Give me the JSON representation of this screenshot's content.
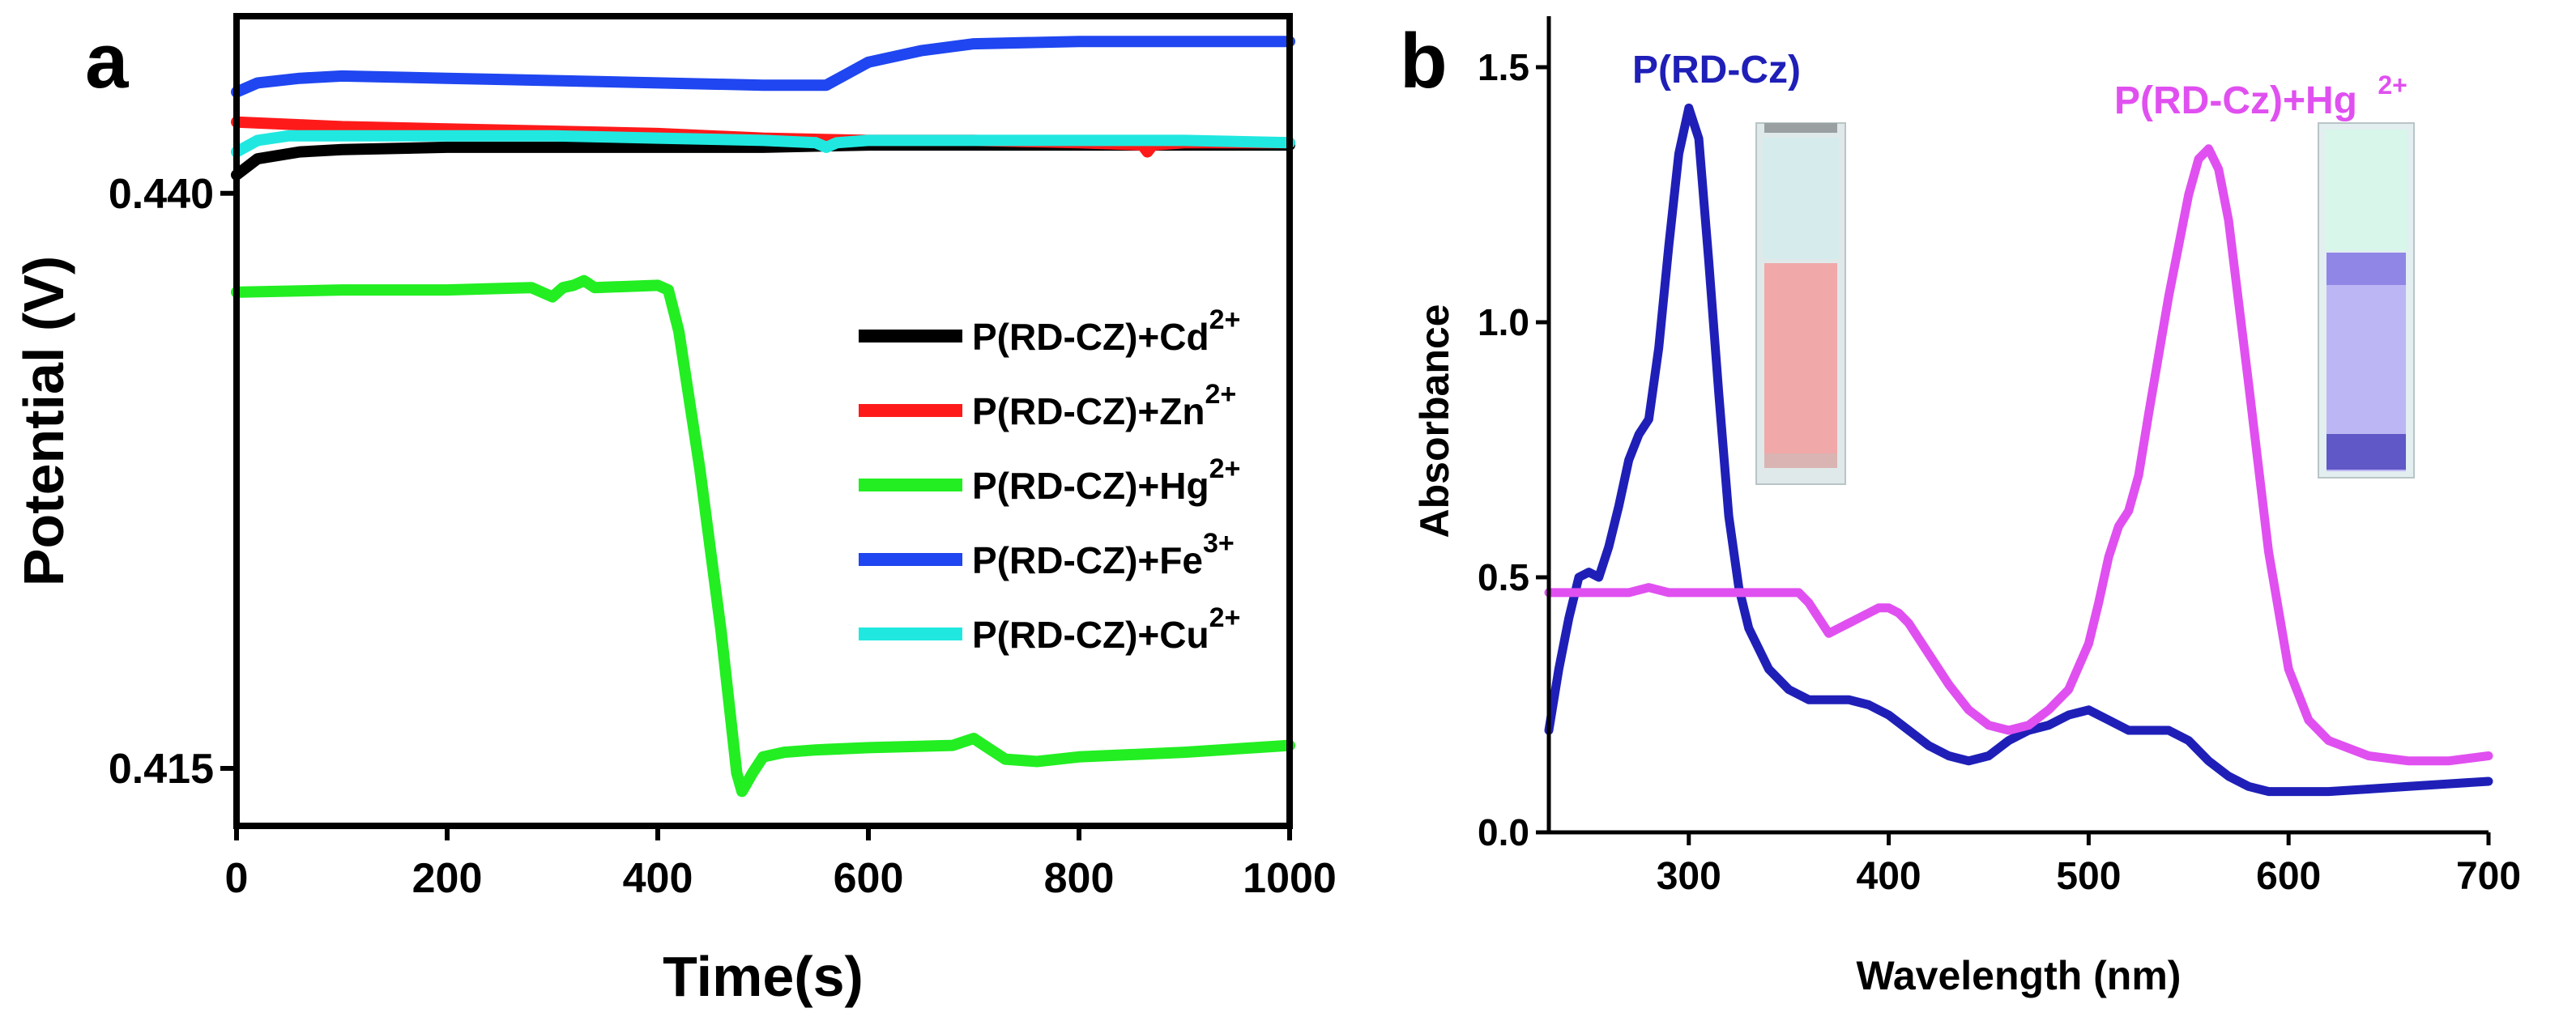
{
  "colors": {
    "cd": "#000000",
    "zn": "#ff1a1a",
    "hg": "#22ee22",
    "fe": "#1f46f0",
    "cu": "#20e8e0",
    "rdcz": "#1f1fb8",
    "rdcz_hg": "#e050f0",
    "vial_a_top": "#d6ecec",
    "vial_a_fill": "#f0a8a8",
    "vial_b_top": "#d8f6ea",
    "vial_b_fill": "#a8a0f0"
  },
  "chart_data": [
    {
      "type": "line",
      "panel": "a",
      "xlabel": "Time(s)",
      "ylabel": "Potential (V)",
      "xlim": [
        0,
        1000
      ],
      "ylim": [
        0.4125,
        0.4477
      ],
      "xticks": [
        "0",
        "200",
        "400",
        "600",
        "800",
        "1000"
      ],
      "yticks": [
        "0.415",
        "0.440"
      ],
      "legend_position": "right",
      "series": [
        {
          "name": "P(RD-CZ)+Cd",
          "sup": "2+",
          "color_key": "cd",
          "x": [
            0,
            20,
            60,
            100,
            200,
            300,
            400,
            500,
            600,
            700,
            800,
            900,
            1000
          ],
          "y": [
            0.4408,
            0.4415,
            0.4418,
            0.4419,
            0.442,
            0.442,
            0.442,
            0.442,
            0.4421,
            0.4421,
            0.4421,
            0.4421,
            0.4421
          ]
        },
        {
          "name": "P(RD-CZ)+Zn",
          "sup": "2+",
          "color_key": "zn",
          "x": [
            0,
            100,
            200,
            300,
            400,
            500,
            600,
            700,
            800,
            860,
            865,
            870,
            900,
            1000
          ],
          "y": [
            0.4431,
            0.4429,
            0.4428,
            0.4427,
            0.4426,
            0.4424,
            0.4423,
            0.4423,
            0.4422,
            0.4421,
            0.4418,
            0.4421,
            0.4422,
            0.4422
          ]
        },
        {
          "name": "P(RD-CZ)+Hg",
          "sup": "2+",
          "color_key": "hg",
          "x": [
            0,
            100,
            200,
            280,
            300,
            310,
            320,
            330,
            340,
            400,
            410,
            420,
            440,
            460,
            475,
            480,
            490,
            500,
            520,
            550,
            600,
            680,
            700,
            710,
            730,
            760,
            800,
            900,
            1000
          ],
          "y": [
            0.4357,
            0.4358,
            0.4358,
            0.4359,
            0.4355,
            0.4359,
            0.436,
            0.4362,
            0.4359,
            0.436,
            0.4358,
            0.434,
            0.428,
            0.421,
            0.4148,
            0.414,
            0.4148,
            0.4155,
            0.4157,
            0.4158,
            0.4159,
            0.416,
            0.4163,
            0.416,
            0.4154,
            0.4153,
            0.4155,
            0.4157,
            0.416
          ]
        },
        {
          "name": "P(RD-CZ)+Fe",
          "sup": "3+",
          "color_key": "fe",
          "x": [
            0,
            20,
            60,
            100,
            200,
            300,
            400,
            500,
            560,
            580,
            600,
            650,
            700,
            800,
            900,
            1000
          ],
          "y": [
            0.4444,
            0.4448,
            0.445,
            0.4451,
            0.445,
            0.4449,
            0.4448,
            0.4447,
            0.4447,
            0.4452,
            0.4457,
            0.4462,
            0.4465,
            0.4466,
            0.4466,
            0.4466
          ]
        },
        {
          "name": "P(RD-CZ)+Cu",
          "sup": "2+",
          "color_key": "cu",
          "x": [
            0,
            20,
            50,
            100,
            200,
            300,
            400,
            500,
            550,
            560,
            570,
            600,
            700,
            800,
            900,
            1000
          ],
          "y": [
            0.4418,
            0.4423,
            0.4425,
            0.4425,
            0.4425,
            0.4425,
            0.4424,
            0.4423,
            0.4422,
            0.442,
            0.4422,
            0.4423,
            0.4423,
            0.4423,
            0.4423,
            0.4422
          ]
        }
      ]
    },
    {
      "type": "line",
      "panel": "b",
      "xlabel": "Wavelength (nm)",
      "ylabel": "Absorbance",
      "xlim": [
        230,
        700
      ],
      "ylim": [
        0,
        1.6
      ],
      "xticks": [
        "300",
        "400",
        "500",
        "600",
        "700"
      ],
      "yticks": [
        "0.0",
        "0.5",
        "1.0",
        "1.5"
      ],
      "series": [
        {
          "name": "P(RD-Cz)",
          "color_key": "rdcz",
          "x": [
            230,
            235,
            240,
            245,
            250,
            255,
            260,
            265,
            270,
            275,
            280,
            285,
            290,
            295,
            300,
            305,
            310,
            315,
            320,
            325,
            330,
            340,
            350,
            360,
            370,
            380,
            390,
            400,
            410,
            420,
            430,
            440,
            450,
            460,
            470,
            480,
            490,
            500,
            510,
            520,
            530,
            540,
            550,
            560,
            570,
            580,
            590,
            600,
            620,
            640,
            660,
            680,
            700
          ],
          "y": [
            0.2,
            0.32,
            0.42,
            0.5,
            0.51,
            0.5,
            0.56,
            0.64,
            0.73,
            0.78,
            0.81,
            0.95,
            1.15,
            1.33,
            1.42,
            1.36,
            1.12,
            0.86,
            0.62,
            0.48,
            0.4,
            0.32,
            0.28,
            0.26,
            0.26,
            0.26,
            0.25,
            0.23,
            0.2,
            0.17,
            0.15,
            0.14,
            0.15,
            0.18,
            0.2,
            0.21,
            0.23,
            0.24,
            0.22,
            0.2,
            0.2,
            0.2,
            0.18,
            0.14,
            0.11,
            0.09,
            0.08,
            0.08,
            0.08,
            0.085,
            0.09,
            0.095,
            0.1
          ]
        },
        {
          "name": "P(RD-Cz)+Hg",
          "sup": "2+",
          "color_key": "rdcz_hg",
          "x": [
            230,
            250,
            270,
            280,
            290,
            300,
            320,
            340,
            350,
            355,
            360,
            365,
            370,
            375,
            380,
            385,
            390,
            395,
            400,
            405,
            410,
            420,
            430,
            440,
            450,
            460,
            470,
            480,
            490,
            500,
            505,
            510,
            515,
            520,
            525,
            530,
            540,
            550,
            555,
            560,
            565,
            570,
            580,
            590,
            600,
            610,
            620,
            640,
            660,
            680,
            700
          ],
          "y": [
            0.47,
            0.47,
            0.47,
            0.48,
            0.47,
            0.47,
            0.47,
            0.47,
            0.47,
            0.47,
            0.45,
            0.42,
            0.39,
            0.4,
            0.41,
            0.42,
            0.43,
            0.44,
            0.44,
            0.43,
            0.41,
            0.35,
            0.29,
            0.24,
            0.21,
            0.2,
            0.21,
            0.24,
            0.28,
            0.37,
            0.45,
            0.54,
            0.6,
            0.63,
            0.7,
            0.82,
            1.05,
            1.25,
            1.32,
            1.34,
            1.3,
            1.2,
            0.88,
            0.55,
            0.32,
            0.22,
            0.18,
            0.15,
            0.14,
            0.14,
            0.15
          ]
        }
      ]
    }
  ],
  "panel_a": {
    "label": "a"
  },
  "panel_b": {
    "label": "b",
    "annotations": {
      "rdcz_name": "P(RD-Cz)",
      "rdcz_hg_name": "P(RD-Cz)+Hg",
      "rdcz_hg_sup": "2+"
    }
  }
}
